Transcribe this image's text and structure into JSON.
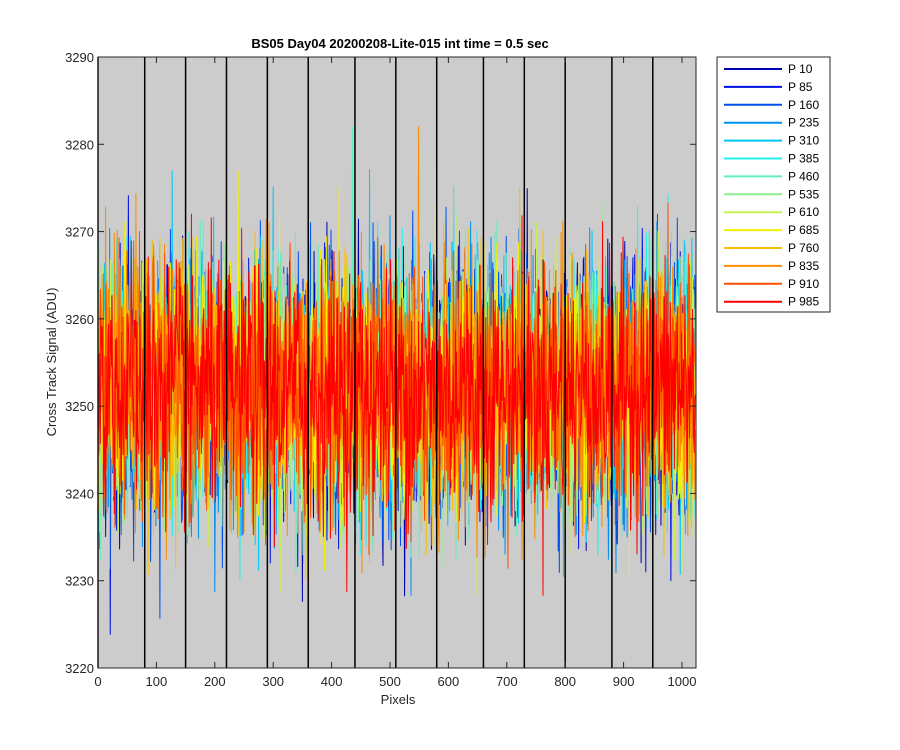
{
  "chart_data": {
    "type": "line",
    "title": "BS05 Day04 20200208-Lite-015 int time = 0.5 sec",
    "xlabel": "Pixels",
    "ylabel": "Cross Track Signal (ADU)",
    "xlim": [
      0,
      1024
    ],
    "ylim": [
      3220,
      3290
    ],
    "xticks": [
      0,
      100,
      200,
      300,
      400,
      500,
      600,
      700,
      800,
      900,
      1000
    ],
    "yticks": [
      3220,
      3230,
      3240,
      3250,
      3260,
      3270,
      3280,
      3290
    ],
    "plot_background": "#cccccc",
    "vertical_markers": [
      0,
      80,
      150,
      220,
      290,
      360,
      440,
      510,
      580,
      660,
      730,
      800,
      880,
      950
    ],
    "legend_position": "outside-top-right",
    "series_mean": 3252,
    "series_spread": 7,
    "series": [
      {
        "name": "P 10",
        "color": "#0000b3"
      },
      {
        "name": "P 85",
        "color": "#0010e0"
      },
      {
        "name": "P 160",
        "color": "#0050f0"
      },
      {
        "name": "P 235",
        "color": "#0090f5"
      },
      {
        "name": "P 310",
        "color": "#00c8f5"
      },
      {
        "name": "P 385",
        "color": "#20f0f0"
      },
      {
        "name": "P 460",
        "color": "#60f0c0"
      },
      {
        "name": "P 535",
        "color": "#90f090"
      },
      {
        "name": "P 610",
        "color": "#c8f050"
      },
      {
        "name": "P 685",
        "color": "#f5f000"
      },
      {
        "name": "P 760",
        "color": "#f8c000"
      },
      {
        "name": "P 835",
        "color": "#fb8c00"
      },
      {
        "name": "P 910",
        "color": "#fd5000"
      },
      {
        "name": "P 985",
        "color": "#ff0000"
      }
    ]
  }
}
